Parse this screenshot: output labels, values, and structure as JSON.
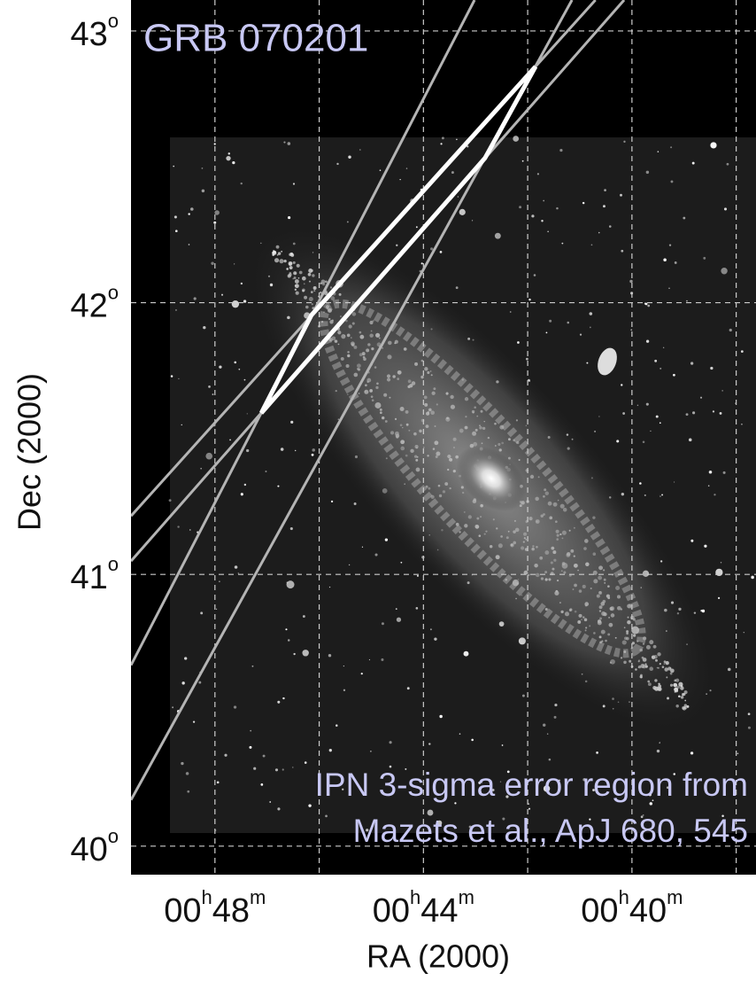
{
  "chart_data": {
    "type": "sky-map",
    "title": "GRB 070201",
    "annotation": [
      "IPN 3-sigma error region from",
      "Mazets et al., ApJ 680, 545"
    ],
    "xlabel": "RA (2000)",
    "ylabel": "Dec (2000)",
    "xlim": [
      49.61,
      37.62
    ],
    "ylim": [
      39.895,
      43.114
    ],
    "xticks": [
      {
        "value": 48,
        "label": "00",
        "h": "h",
        "min": "48",
        "m": "m"
      },
      {
        "value": 44,
        "label": "00",
        "h": "h",
        "min": "44",
        "m": "m"
      },
      {
        "value": 40,
        "label": "00",
        "h": "h",
        "min": "40",
        "m": "m"
      }
    ],
    "xgrid": [
      48,
      46,
      44,
      42,
      40,
      38
    ],
    "yticks": [
      {
        "value": 43,
        "label": "43",
        "sup": "o"
      },
      {
        "value": 42,
        "label": "42",
        "sup": "o"
      },
      {
        "value": 41,
        "label": "41",
        "sup": "o"
      },
      {
        "value": 40,
        "label": "40",
        "sup": "o"
      }
    ],
    "grid": true,
    "annuli": [
      {
        "x": [
          49.61,
          40.7
        ],
        "y": [
          41.215,
          43.114
        ]
      },
      {
        "x": [
          49.61,
          40.15
        ],
        "y": [
          41.049,
          43.114
        ]
      },
      {
        "x": [
          49.61,
          43.02
        ],
        "y": [
          40.666,
          43.114
        ]
      },
      {
        "x": [
          49.61,
          41.15
        ],
        "y": [
          40.17,
          43.114
        ]
      }
    ],
    "annulus_color": "#b4b4b4",
    "error_region": {
      "x": [
        41.85,
        42.82,
        47.11,
        46.15
      ],
      "y": [
        42.869,
        42.532,
        41.594,
        41.954
      ]
    },
    "error_region_color": "#ffffff",
    "text_color": "#c8c8f4"
  }
}
